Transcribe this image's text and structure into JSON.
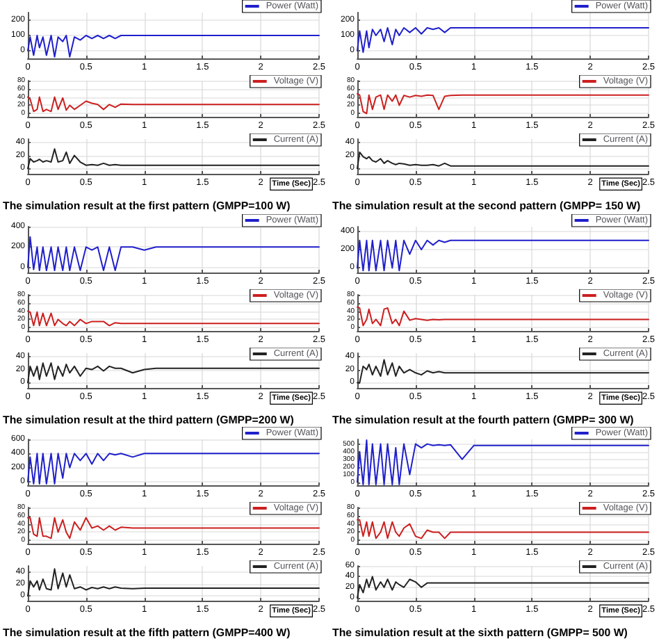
{
  "chart_data": [
    {
      "type": "line",
      "x": [
        0,
        0.02,
        0.05,
        0.08,
        0.1,
        0.13,
        0.16,
        0.2,
        0.23,
        0.26,
        0.3,
        0.33,
        0.36,
        0.4,
        0.45,
        0.5,
        0.55,
        0.6,
        0.65,
        0.7,
        0.75,
        0.8,
        0.9,
        1.0,
        1.1,
        1.5,
        2.0,
        2.5
      ],
      "series": [
        {
          "name": "Power (Watt)",
          "color": "#1f1fcc",
          "values": [
            0,
            90,
            -30,
            100,
            20,
            90,
            -30,
            100,
            -40,
            90,
            60,
            100,
            -40,
            90,
            70,
            100,
            80,
            100,
            80,
            100,
            80,
            100,
            100,
            100,
            100,
            100,
            100,
            100
          ]
        }
      ],
      "xlim": [
        0,
        2.5
      ],
      "xticks": [
        0,
        0.5,
        1,
        1.5,
        2,
        2.5
      ],
      "ylim": [
        -50,
        250
      ],
      "yticks": [
        0,
        100,
        200
      ],
      "grid": true,
      "legend": "top right",
      "marker": "none",
      "line_style": "solid"
    },
    {
      "type": "line",
      "x": [
        0,
        0.02,
        0.05,
        0.08,
        0.1,
        0.13,
        0.16,
        0.2,
        0.23,
        0.26,
        0.3,
        0.33,
        0.36,
        0.4,
        0.45,
        0.5,
        0.55,
        0.6,
        0.65,
        0.7,
        0.75,
        0.8,
        0.9,
        1.0,
        1.1,
        1.5,
        2.0,
        2.5
      ],
      "series": [
        {
          "name": "Voltage (V)",
          "color": "#cc1f1f",
          "values": [
            40,
            35,
            5,
            10,
            40,
            5,
            10,
            5,
            40,
            10,
            38,
            8,
            20,
            10,
            20,
            30,
            25,
            22,
            10,
            22,
            15,
            23,
            22,
            22,
            22,
            22,
            22,
            22
          ]
        }
      ],
      "xlim": [
        0,
        2.5
      ],
      "xticks": [
        0,
        0.5,
        1,
        1.5,
        2,
        2.5
      ],
      "ylim": [
        -8,
        80
      ],
      "yticks": [
        0,
        20,
        40,
        60,
        80
      ],
      "grid": true,
      "legend": "top right",
      "marker": "none",
      "line_style": "solid"
    },
    {
      "type": "line",
      "x": [
        0,
        0.02,
        0.05,
        0.08,
        0.1,
        0.13,
        0.16,
        0.2,
        0.23,
        0.26,
        0.3,
        0.33,
        0.36,
        0.4,
        0.45,
        0.5,
        0.55,
        0.6,
        0.65,
        0.7,
        0.75,
        0.8,
        0.9,
        1.0,
        1.1,
        1.5,
        2.0,
        2.5
      ],
      "series": [
        {
          "name": "Current (A)",
          "color": "#222222",
          "values": [
            0,
            15,
            10,
            12,
            14,
            10,
            12,
            10,
            30,
            10,
            12,
            25,
            8,
            20,
            10,
            5,
            6,
            5,
            8,
            5,
            6,
            5,
            5,
            5,
            5,
            5,
            5,
            5
          ]
        }
      ],
      "xlim": [
        0,
        2.5
      ],
      "xticks": [
        0,
        0.5,
        1,
        1.5,
        2,
        2.5
      ],
      "ylim": [
        -8,
        45
      ],
      "yticks": [
        0,
        20,
        40
      ],
      "grid": true,
      "legend": "top right",
      "marker": "none",
      "line_style": "solid",
      "xlabel": "Time (Sec)",
      "annotations": [
        "The simulation result at the first pattern (GMPP=100 W)"
      ]
    },
    {
      "type": "line",
      "x": [
        0,
        0.02,
        0.05,
        0.08,
        0.1,
        0.13,
        0.16,
        0.2,
        0.23,
        0.26,
        0.3,
        0.33,
        0.36,
        0.4,
        0.45,
        0.5,
        0.55,
        0.6,
        0.65,
        0.7,
        0.75,
        0.8,
        0.9,
        1.0,
        1.1,
        1.5,
        2.0,
        2.5
      ],
      "series": [
        {
          "name": "Power (Watt)",
          "color": "#1f1fcc",
          "values": [
            0,
            130,
            -10,
            130,
            20,
            140,
            100,
            140,
            60,
            150,
            40,
            140,
            100,
            150,
            120,
            150,
            110,
            150,
            140,
            150,
            120,
            150,
            150,
            150,
            150,
            150,
            150,
            150
          ]
        }
      ],
      "xlim": [
        0,
        2.5
      ],
      "xticks": [
        0,
        0.5,
        1,
        1.5,
        2,
        2.5
      ],
      "ylim": [
        -50,
        250
      ],
      "yticks": [
        0,
        100,
        200
      ],
      "grid": true,
      "legend": "top right",
      "marker": "none",
      "line_style": "solid"
    },
    {
      "type": "line",
      "x": [
        0,
        0.02,
        0.05,
        0.08,
        0.1,
        0.13,
        0.16,
        0.2,
        0.23,
        0.26,
        0.3,
        0.33,
        0.36,
        0.4,
        0.45,
        0.5,
        0.55,
        0.6,
        0.65,
        0.7,
        0.75,
        0.8,
        0.9,
        1.0,
        1.1,
        1.5,
        2.0,
        2.5
      ],
      "series": [
        {
          "name": "Voltage (V)",
          "color": "#cc1f1f",
          "values": [
            48,
            45,
            5,
            0,
            45,
            10,
            40,
            45,
            10,
            45,
            30,
            45,
            20,
            44,
            40,
            44,
            42,
            45,
            44,
            10,
            42,
            44,
            45,
            45,
            45,
            45,
            45,
            45
          ]
        }
      ],
      "xlim": [
        0,
        2.5
      ],
      "xticks": [
        0,
        0.5,
        1,
        1.5,
        2,
        2.5
      ],
      "ylim": [
        -8,
        80
      ],
      "yticks": [
        0,
        20,
        40,
        60,
        80
      ],
      "grid": true,
      "legend": "top right",
      "marker": "none",
      "line_style": "solid"
    },
    {
      "type": "line",
      "x": [
        0,
        0.02,
        0.05,
        0.08,
        0.1,
        0.13,
        0.16,
        0.2,
        0.23,
        0.26,
        0.3,
        0.33,
        0.36,
        0.4,
        0.45,
        0.5,
        0.55,
        0.6,
        0.65,
        0.7,
        0.75,
        0.8,
        0.9,
        1.0,
        1.1,
        1.5,
        2.0,
        2.5
      ],
      "series": [
        {
          "name": "Current (A)",
          "color": "#222222",
          "values": [
            0,
            25,
            18,
            15,
            18,
            12,
            10,
            15,
            8,
            12,
            8,
            6,
            8,
            7,
            5,
            6,
            5,
            5,
            6,
            4,
            8,
            4,
            4,
            4,
            4,
            4,
            4,
            4
          ]
        }
      ],
      "xlim": [
        0,
        2.5
      ],
      "xticks": [
        0,
        0.5,
        1,
        1.5,
        2,
        2.5
      ],
      "ylim": [
        -8,
        45
      ],
      "yticks": [
        0,
        20,
        40
      ],
      "grid": true,
      "legend": "top right",
      "marker": "none",
      "line_style": "solid",
      "xlabel": "Time (Sec)",
      "annotations": [
        "The simulation result at the second pattern (GMPP= 150 W)"
      ]
    },
    {
      "type": "line",
      "x": [
        0,
        0.02,
        0.05,
        0.08,
        0.1,
        0.13,
        0.16,
        0.2,
        0.23,
        0.26,
        0.3,
        0.33,
        0.36,
        0.4,
        0.45,
        0.5,
        0.55,
        0.6,
        0.65,
        0.7,
        0.75,
        0.8,
        0.9,
        1.0,
        1.1,
        1.5,
        2.0,
        2.5
      ],
      "series": [
        {
          "name": "Power (Watt)",
          "color": "#1f1fcc",
          "values": [
            0,
            300,
            -20,
            200,
            -30,
            200,
            -30,
            200,
            -30,
            200,
            -30,
            200,
            -30,
            200,
            -30,
            200,
            170,
            200,
            -30,
            200,
            -30,
            200,
            200,
            170,
            200,
            200,
            200,
            200
          ]
        }
      ],
      "xlim": [
        0,
        2.5
      ],
      "xticks": [
        0,
        0.5,
        1,
        1.5,
        2,
        2.5
      ],
      "ylim": [
        -50,
        400
      ],
      "yticks": [
        0,
        200,
        400
      ],
      "grid": true,
      "legend": "top right",
      "marker": "none",
      "line_style": "solid"
    },
    {
      "type": "line",
      "x": [
        0,
        0.02,
        0.05,
        0.08,
        0.1,
        0.13,
        0.16,
        0.2,
        0.23,
        0.26,
        0.3,
        0.33,
        0.36,
        0.4,
        0.45,
        0.5,
        0.55,
        0.6,
        0.65,
        0.7,
        0.75,
        0.8,
        0.9,
        1.0,
        1.1,
        1.5,
        2.0,
        2.5
      ],
      "series": [
        {
          "name": "Voltage (V)",
          "color": "#cc1f1f",
          "values": [
            40,
            38,
            5,
            38,
            5,
            35,
            5,
            35,
            5,
            20,
            10,
            5,
            15,
            5,
            20,
            10,
            15,
            15,
            15,
            5,
            12,
            10,
            10,
            10,
            10,
            10,
            10,
            10
          ]
        }
      ],
      "xlim": [
        0,
        2.5
      ],
      "xticks": [
        0,
        0.5,
        1,
        1.5,
        2,
        2.5
      ],
      "ylim": [
        -8,
        80
      ],
      "yticks": [
        0,
        20,
        40,
        60,
        80
      ],
      "grid": true,
      "legend": "top right",
      "marker": "none",
      "line_style": "solid"
    },
    {
      "type": "line",
      "x": [
        0,
        0.02,
        0.05,
        0.08,
        0.1,
        0.13,
        0.16,
        0.2,
        0.23,
        0.26,
        0.3,
        0.33,
        0.36,
        0.4,
        0.45,
        0.5,
        0.55,
        0.6,
        0.65,
        0.7,
        0.75,
        0.8,
        0.9,
        1.0,
        1.1,
        1.5,
        2.0,
        2.5
      ],
      "series": [
        {
          "name": "Current (A)",
          "color": "#222222",
          "values": [
            0,
            25,
            10,
            25,
            5,
            30,
            10,
            30,
            5,
            25,
            10,
            28,
            15,
            25,
            10,
            22,
            20,
            25,
            18,
            25,
            22,
            22,
            15,
            20,
            22,
            22,
            22,
            22
          ]
        }
      ],
      "xlim": [
        0,
        2.5
      ],
      "xticks": [
        0,
        0.5,
        1,
        1.5,
        2,
        2.5
      ],
      "ylim": [
        -8,
        45
      ],
      "yticks": [
        0,
        20,
        40
      ],
      "grid": true,
      "legend": "top right",
      "marker": "none",
      "line_style": "solid",
      "xlabel": "Time (Sec)",
      "annotations": [
        "The simulation result at the third pattern (GMPP=200 W)"
      ]
    },
    {
      "type": "line",
      "x": [
        0,
        0.02,
        0.05,
        0.08,
        0.1,
        0.13,
        0.16,
        0.2,
        0.23,
        0.26,
        0.3,
        0.33,
        0.36,
        0.4,
        0.45,
        0.5,
        0.55,
        0.6,
        0.65,
        0.7,
        0.75,
        0.8,
        0.9,
        1.0,
        1.1,
        1.5,
        2.0,
        2.5
      ],
      "series": [
        {
          "name": "Power (Watt)",
          "color": "#1f1fcc",
          "values": [
            0,
            300,
            -30,
            300,
            -30,
            300,
            -30,
            300,
            -30,
            300,
            0,
            300,
            -30,
            300,
            150,
            300,
            200,
            300,
            250,
            300,
            280,
            300,
            300,
            300,
            300,
            300,
            300,
            300
          ]
        }
      ],
      "xlim": [
        0,
        2.5
      ],
      "xticks": [
        0,
        0.5,
        1,
        1.5,
        2,
        2.5
      ],
      "ylim": [
        -50,
        450
      ],
      "yticks": [
        0,
        200,
        400
      ],
      "grid": true,
      "legend": "top right",
      "marker": "none",
      "line_style": "solid"
    },
    {
      "type": "line",
      "x": [
        0,
        0.02,
        0.05,
        0.08,
        0.1,
        0.13,
        0.16,
        0.2,
        0.23,
        0.26,
        0.3,
        0.33,
        0.36,
        0.4,
        0.45,
        0.5,
        0.55,
        0.6,
        0.65,
        0.7,
        0.75,
        0.8,
        0.9,
        1.0,
        1.1,
        1.5,
        2.0,
        2.5
      ],
      "series": [
        {
          "name": "Voltage (V)",
          "color": "#cc1f1f",
          "values": [
            50,
            48,
            5,
            20,
            45,
            10,
            20,
            5,
            45,
            48,
            10,
            20,
            5,
            40,
            18,
            22,
            20,
            18,
            20,
            19,
            20,
            20,
            20,
            20,
            20,
            20,
            20,
            20
          ]
        }
      ],
      "xlim": [
        0,
        2.5
      ],
      "xticks": [
        0,
        0.5,
        1,
        1.5,
        2,
        2.5
      ],
      "ylim": [
        -8,
        80
      ],
      "yticks": [
        0,
        20,
        40,
        60,
        80
      ],
      "grid": true,
      "legend": "top right",
      "marker": "none",
      "line_style": "solid"
    },
    {
      "type": "line",
      "x": [
        0,
        0.02,
        0.05,
        0.08,
        0.1,
        0.13,
        0.16,
        0.2,
        0.23,
        0.26,
        0.3,
        0.33,
        0.36,
        0.4,
        0.45,
        0.5,
        0.55,
        0.6,
        0.65,
        0.7,
        0.75,
        0.8,
        0.9,
        1.0,
        1.1,
        1.5,
        2.0,
        2.5
      ],
      "series": [
        {
          "name": "Current (A)",
          "color": "#222222",
          "values": [
            0,
            0,
            25,
            20,
            28,
            12,
            25,
            10,
            35,
            12,
            30,
            10,
            25,
            15,
            20,
            15,
            12,
            18,
            15,
            17,
            15,
            15,
            15,
            15,
            15,
            15,
            15,
            15
          ]
        }
      ],
      "xlim": [
        0,
        2.5
      ],
      "xticks": [
        0,
        0.5,
        1,
        1.5,
        2,
        2.5
      ],
      "ylim": [
        -8,
        45
      ],
      "yticks": [
        0,
        20,
        40
      ],
      "grid": true,
      "legend": "top right",
      "marker": "none",
      "line_style": "solid",
      "xlabel": "Time (Sec)",
      "annotations": [
        "The simulation result at the fourth pattern (GMPP= 300 W)"
      ]
    },
    {
      "type": "line",
      "x": [
        0,
        0.02,
        0.05,
        0.08,
        0.1,
        0.13,
        0.16,
        0.2,
        0.23,
        0.26,
        0.3,
        0.33,
        0.36,
        0.4,
        0.45,
        0.5,
        0.55,
        0.6,
        0.65,
        0.7,
        0.75,
        0.8,
        0.9,
        1.0,
        1.1,
        1.5,
        2.0,
        2.5
      ],
      "series": [
        {
          "name": "Power (Watt)",
          "color": "#1f1fcc",
          "values": [
            0,
            350,
            -30,
            400,
            -30,
            400,
            -30,
            400,
            -30,
            400,
            50,
            400,
            200,
            400,
            300,
            400,
            250,
            400,
            300,
            400,
            380,
            400,
            350,
            400,
            400,
            400,
            400,
            400
          ]
        }
      ],
      "xlim": [
        0,
        2.5
      ],
      "xticks": [
        0,
        0.5,
        1,
        1.5,
        2,
        2.5
      ],
      "ylim": [
        -50,
        600
      ],
      "yticks": [
        0,
        200,
        400,
        600
      ],
      "grid": true,
      "legend": "top right",
      "marker": "none",
      "line_style": "solid"
    },
    {
      "type": "line",
      "x": [
        0,
        0.02,
        0.05,
        0.08,
        0.1,
        0.13,
        0.16,
        0.2,
        0.23,
        0.26,
        0.3,
        0.33,
        0.36,
        0.4,
        0.45,
        0.5,
        0.55,
        0.6,
        0.65,
        0.7,
        0.75,
        0.8,
        0.9,
        1.0,
        1.1,
        1.5,
        2.0,
        2.5
      ],
      "series": [
        {
          "name": "Voltage (V)",
          "color": "#cc1f1f",
          "values": [
            55,
            55,
            15,
            10,
            55,
            10,
            10,
            5,
            55,
            20,
            50,
            20,
            5,
            45,
            25,
            55,
            30,
            35,
            25,
            35,
            25,
            32,
            30,
            30,
            30,
            30,
            30,
            30
          ]
        }
      ],
      "xlim": [
        0,
        2.5
      ],
      "xticks": [
        0,
        0.5,
        1,
        1.5,
        2,
        2.5
      ],
      "ylim": [
        -8,
        80
      ],
      "yticks": [
        0,
        20,
        40,
        60,
        80
      ],
      "grid": true,
      "legend": "top right",
      "marker": "none",
      "line_style": "solid"
    },
    {
      "type": "line",
      "x": [
        0,
        0.02,
        0.05,
        0.08,
        0.1,
        0.13,
        0.16,
        0.2,
        0.23,
        0.26,
        0.3,
        0.33,
        0.36,
        0.4,
        0.45,
        0.5,
        0.55,
        0.6,
        0.65,
        0.7,
        0.75,
        0.8,
        0.9,
        1.0,
        1.1,
        1.5,
        2.0,
        2.5
      ],
      "series": [
        {
          "name": "Current (A)",
          "color": "#222222",
          "values": [
            0,
            25,
            15,
            25,
            10,
            28,
            12,
            10,
            45,
            12,
            38,
            15,
            35,
            12,
            15,
            10,
            14,
            12,
            15,
            12,
            15,
            13,
            12,
            13,
            13,
            13,
            13,
            13
          ]
        }
      ],
      "xlim": [
        0,
        2.5
      ],
      "xticks": [
        0,
        0.5,
        1,
        1.5,
        2,
        2.5
      ],
      "ylim": [
        -8,
        50
      ],
      "yticks": [
        0,
        20,
        40
      ],
      "grid": true,
      "legend": "top right",
      "marker": "none",
      "line_style": "solid",
      "xlabel": "Time (Sec)",
      "annotations": [
        "The simulation result at the fifth pattern (GMPP=400 W)"
      ]
    },
    {
      "type": "line",
      "x": [
        0,
        0.02,
        0.05,
        0.08,
        0.1,
        0.13,
        0.16,
        0.2,
        0.23,
        0.26,
        0.3,
        0.33,
        0.36,
        0.4,
        0.45,
        0.5,
        0.55,
        0.6,
        0.65,
        0.7,
        0.75,
        0.8,
        0.9,
        1.0,
        1.1,
        1.5,
        2.0,
        2.5
      ],
      "series": [
        {
          "name": "Power (Watt)",
          "color": "#1f1fcc",
          "values": [
            0,
            400,
            -30,
            550,
            -30,
            500,
            -30,
            500,
            -30,
            500,
            -30,
            450,
            -30,
            500,
            100,
            500,
            450,
            500,
            480,
            490,
            480,
            490,
            300,
            480,
            480,
            480,
            480,
            480
          ]
        }
      ],
      "xlim": [
        0,
        2.5
      ],
      "xticks": [
        0,
        0.5,
        1,
        1.5,
        2,
        2.5
      ],
      "ylim": [
        -40,
        560
      ],
      "yticks": [
        0,
        100,
        200,
        300,
        400,
        500
      ],
      "grid": true,
      "legend": "top right",
      "marker": "none",
      "line_style": "solid"
    },
    {
      "type": "line",
      "x": [
        0,
        0.02,
        0.05,
        0.08,
        0.1,
        0.13,
        0.16,
        0.2,
        0.23,
        0.26,
        0.3,
        0.33,
        0.36,
        0.4,
        0.45,
        0.5,
        0.55,
        0.6,
        0.65,
        0.7,
        0.75,
        0.8,
        0.9,
        1.0,
        1.1,
        1.5,
        2.0,
        2.5
      ],
      "series": [
        {
          "name": "Voltage (V)",
          "color": "#cc1f1f",
          "values": [
            50,
            50,
            10,
            45,
            10,
            45,
            5,
            20,
            45,
            5,
            45,
            20,
            10,
            30,
            40,
            10,
            5,
            25,
            20,
            20,
            5,
            20,
            20,
            20,
            20,
            20,
            20,
            20
          ]
        }
      ],
      "xlim": [
        0,
        2.5
      ],
      "xticks": [
        0,
        0.5,
        1,
        1.5,
        2,
        2.5
      ],
      "ylim": [
        -8,
        80
      ],
      "yticks": [
        0,
        20,
        40,
        60,
        80
      ],
      "grid": true,
      "legend": "top right",
      "marker": "none",
      "line_style": "solid"
    },
    {
      "type": "line",
      "x": [
        0,
        0.02,
        0.05,
        0.08,
        0.1,
        0.13,
        0.16,
        0.2,
        0.23,
        0.26,
        0.3,
        0.33,
        0.36,
        0.4,
        0.45,
        0.5,
        0.55,
        0.6,
        0.65,
        0.7,
        0.75,
        0.8,
        0.9,
        1.0,
        1.1,
        1.5,
        2.0,
        2.5
      ],
      "series": [
        {
          "name": "Current (A)",
          "color": "#222222",
          "values": [
            0,
            25,
            10,
            35,
            20,
            40,
            15,
            30,
            20,
            35,
            15,
            30,
            25,
            20,
            35,
            30,
            20,
            28,
            28,
            28,
            28,
            28,
            28,
            28,
            28,
            28,
            28,
            28
          ]
        }
      ],
      "xlim": [
        0,
        2.5
      ],
      "xticks": [
        0,
        0.5,
        1,
        1.5,
        2,
        2.5
      ],
      "ylim": [
        -5,
        60
      ],
      "yticks": [
        0,
        20,
        40,
        60
      ],
      "grid": true,
      "legend": "top right",
      "marker": "none",
      "line_style": "solid",
      "xlabel": "Time (Sec)",
      "annotations": [
        "The simulation result at the sixth pattern (GMPP= 500 W)"
      ]
    }
  ]
}
